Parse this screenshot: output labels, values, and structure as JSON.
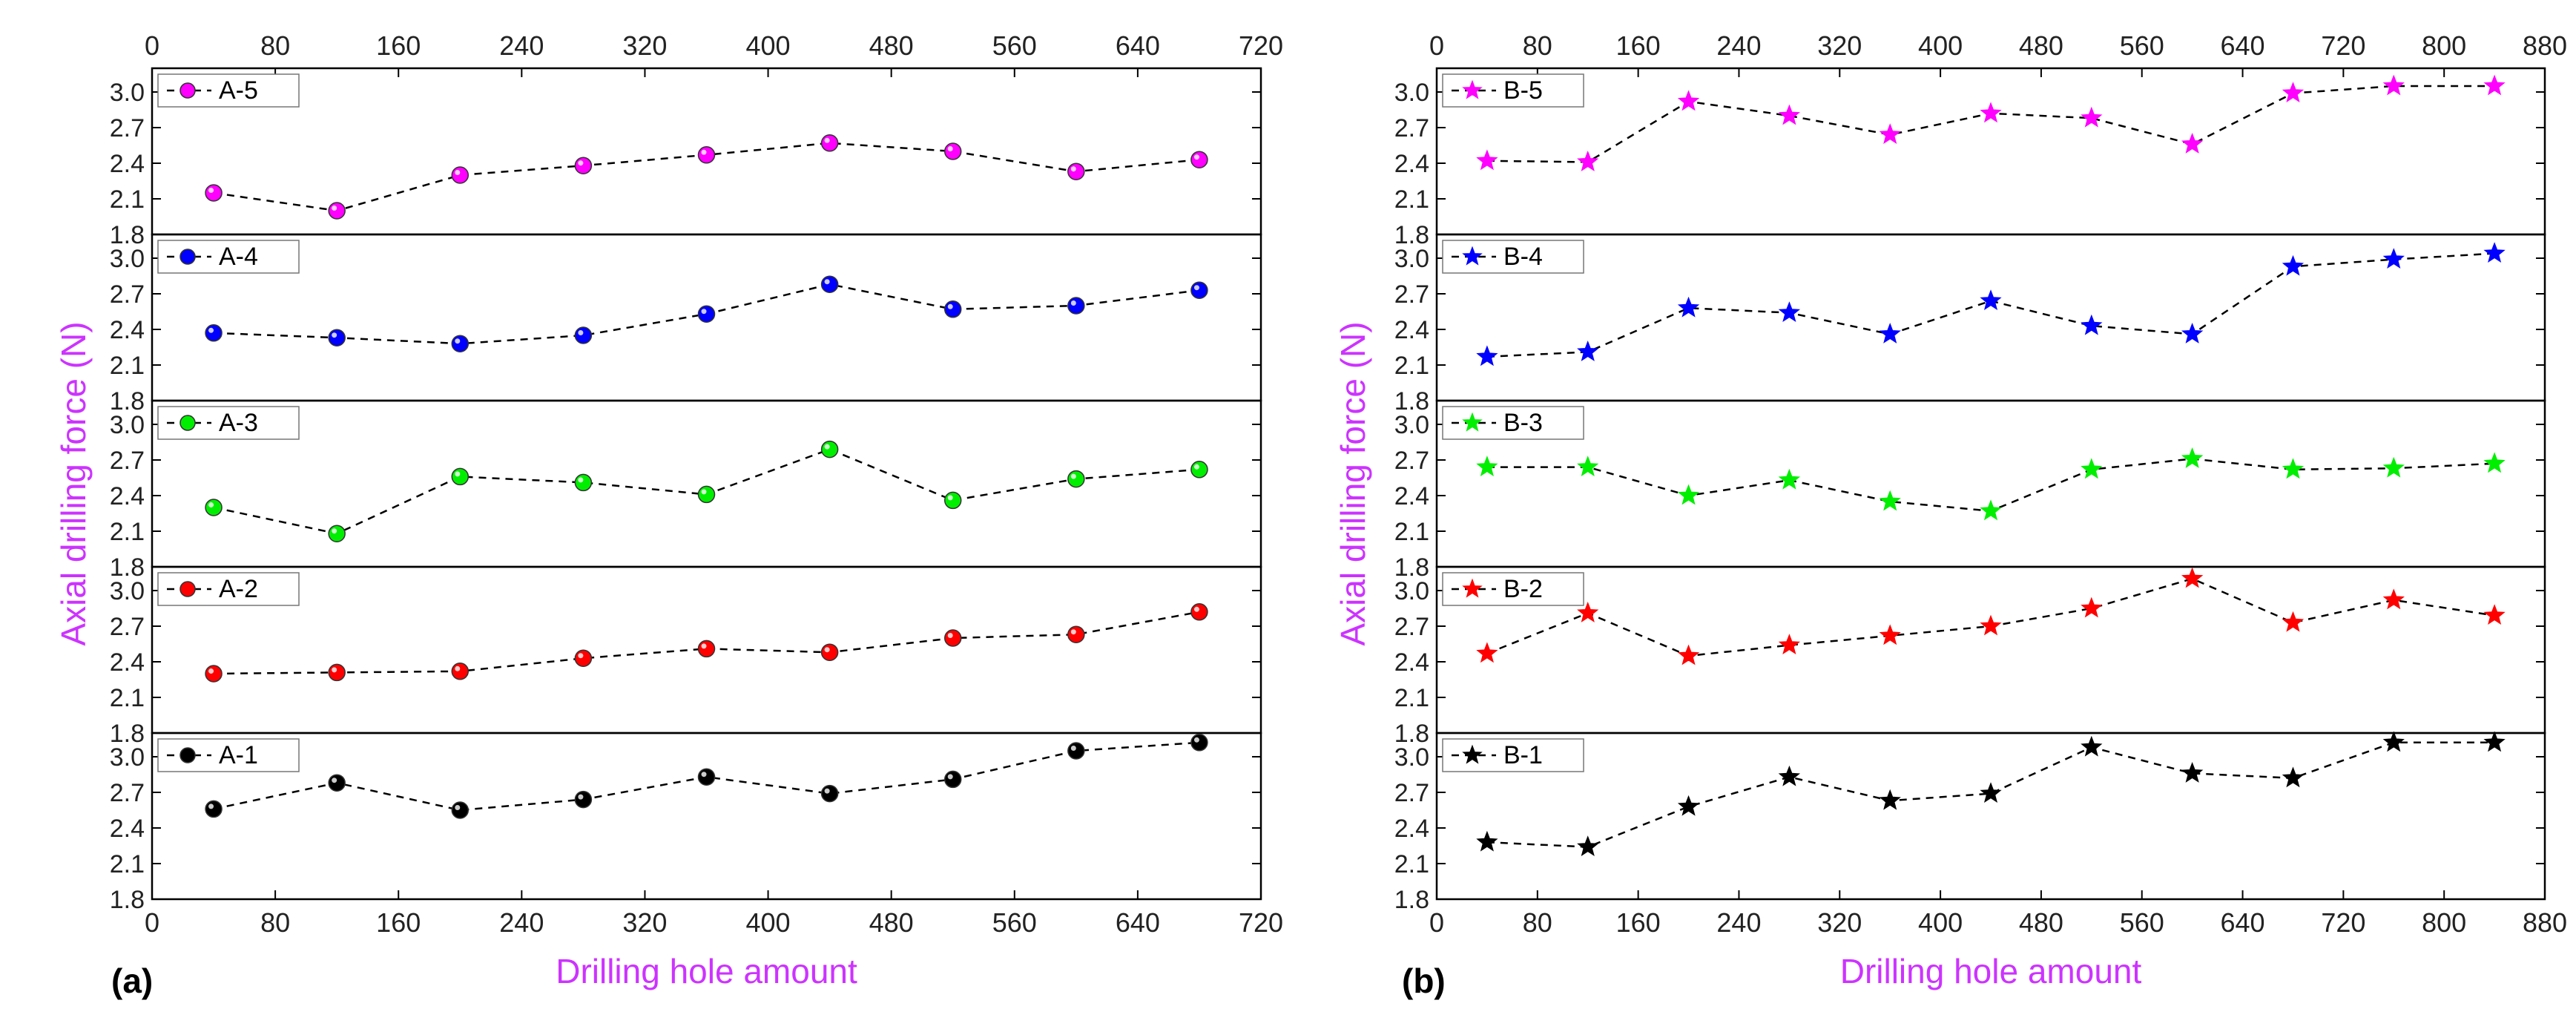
{
  "figure": {
    "panel_a_label": "(a)",
    "panel_b_label": "(b)"
  },
  "chart_data": [
    {
      "panel": "a",
      "type": "scatter",
      "connector": "dashed-line",
      "marker": "sphere",
      "xlabel": "Drilling hole amount",
      "ylabel": "Axial drilling force (N)",
      "label_color": "#CC33FF",
      "xlim": [
        0,
        720
      ],
      "xticks": [
        0,
        80,
        160,
        240,
        320,
        400,
        480,
        560,
        640,
        720
      ],
      "ylim": [
        1.8,
        3.2
      ],
      "yticks": [
        1.8,
        2.1,
        2.4,
        2.7,
        3.0
      ],
      "x": [
        40,
        120,
        200,
        280,
        360,
        440,
        520,
        600,
        680
      ],
      "series": [
        {
          "name": "A-5",
          "color": "#FF00FF",
          "values": [
            2.15,
            2.0,
            2.3,
            2.38,
            2.47,
            2.57,
            2.5,
            2.33,
            2.43
          ]
        },
        {
          "name": "A-4",
          "color": "#0000FF",
          "values": [
            2.37,
            2.33,
            2.28,
            2.35,
            2.53,
            2.78,
            2.57,
            2.6,
            2.73
          ]
        },
        {
          "name": "A-3",
          "color": "#00EE00",
          "values": [
            2.3,
            2.08,
            2.56,
            2.51,
            2.41,
            2.79,
            2.36,
            2.54,
            2.62
          ]
        },
        {
          "name": "A-2",
          "color": "#FF0000",
          "values": [
            2.3,
            2.31,
            2.32,
            2.43,
            2.51,
            2.48,
            2.6,
            2.63,
            2.82
          ]
        },
        {
          "name": "A-1",
          "color": "#000000",
          "values": [
            2.56,
            2.78,
            2.55,
            2.64,
            2.83,
            2.69,
            2.81,
            3.05,
            3.12
          ]
        }
      ]
    },
    {
      "panel": "b",
      "type": "scatter",
      "connector": "dashed-line",
      "marker": "star",
      "xlabel": "Drilling hole amount",
      "ylabel": "Axial drilling force (N)",
      "label_color": "#CC33FF",
      "xlim": [
        0,
        880
      ],
      "xticks": [
        0,
        80,
        160,
        240,
        320,
        400,
        480,
        560,
        640,
        720,
        800,
        880
      ],
      "ylim": [
        1.8,
        3.2
      ],
      "yticks": [
        1.8,
        2.1,
        2.4,
        2.7,
        3.0
      ],
      "x": [
        40,
        120,
        200,
        280,
        360,
        440,
        520,
        600,
        680,
        760,
        840
      ],
      "series": [
        {
          "name": "B-5",
          "color": "#FF00FF",
          "values": [
            2.42,
            2.41,
            2.92,
            2.8,
            2.64,
            2.82,
            2.78,
            2.56,
            2.99,
            3.05,
            3.05
          ]
        },
        {
          "name": "B-4",
          "color": "#0000FF",
          "values": [
            2.17,
            2.21,
            2.58,
            2.54,
            2.36,
            2.64,
            2.43,
            2.36,
            2.93,
            2.99,
            3.04
          ]
        },
        {
          "name": "B-3",
          "color": "#00EE00",
          "values": [
            2.64,
            2.64,
            2.4,
            2.53,
            2.35,
            2.27,
            2.62,
            2.71,
            2.62,
            2.63,
            2.67
          ]
        },
        {
          "name": "B-2",
          "color": "#FF0000",
          "values": [
            2.47,
            2.81,
            2.45,
            2.54,
            2.62,
            2.7,
            2.85,
            3.1,
            2.73,
            2.92,
            2.79
          ]
        },
        {
          "name": "B-1",
          "color": "#000000",
          "values": [
            2.28,
            2.24,
            2.58,
            2.83,
            2.63,
            2.69,
            3.08,
            2.86,
            2.82,
            3.12,
            3.12
          ]
        }
      ]
    }
  ]
}
